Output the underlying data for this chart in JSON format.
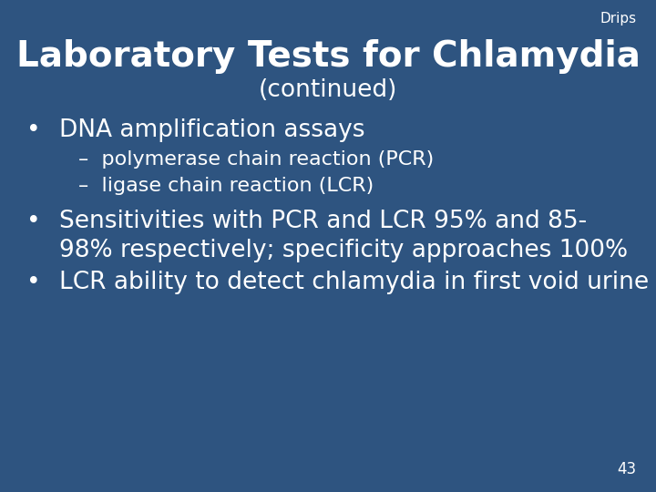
{
  "background_color": "#2e5480",
  "text_color": "#ffffff",
  "drips_label": "Drips",
  "title_line1": "Laboratory Tests for Chlamydia",
  "title_line2": "(continued)",
  "bullet1": "DNA amplification assays",
  "sub1": "–  polymerase chain reaction (PCR)",
  "sub2": "–  ligase chain reaction (LCR)",
  "bullet2_line1": "Sensitivities with PCR and LCR 95% and 85-",
  "bullet2_line2": "98% respectively; specificity approaches 100%",
  "bullet3": "LCR ability to detect chlamydia in first void urine",
  "page_number": "43",
  "title_fontsize": 28,
  "subtitle_fontsize": 19,
  "drips_fontsize": 11,
  "bullet_fontsize": 19,
  "sub_fontsize": 16,
  "page_fontsize": 12
}
